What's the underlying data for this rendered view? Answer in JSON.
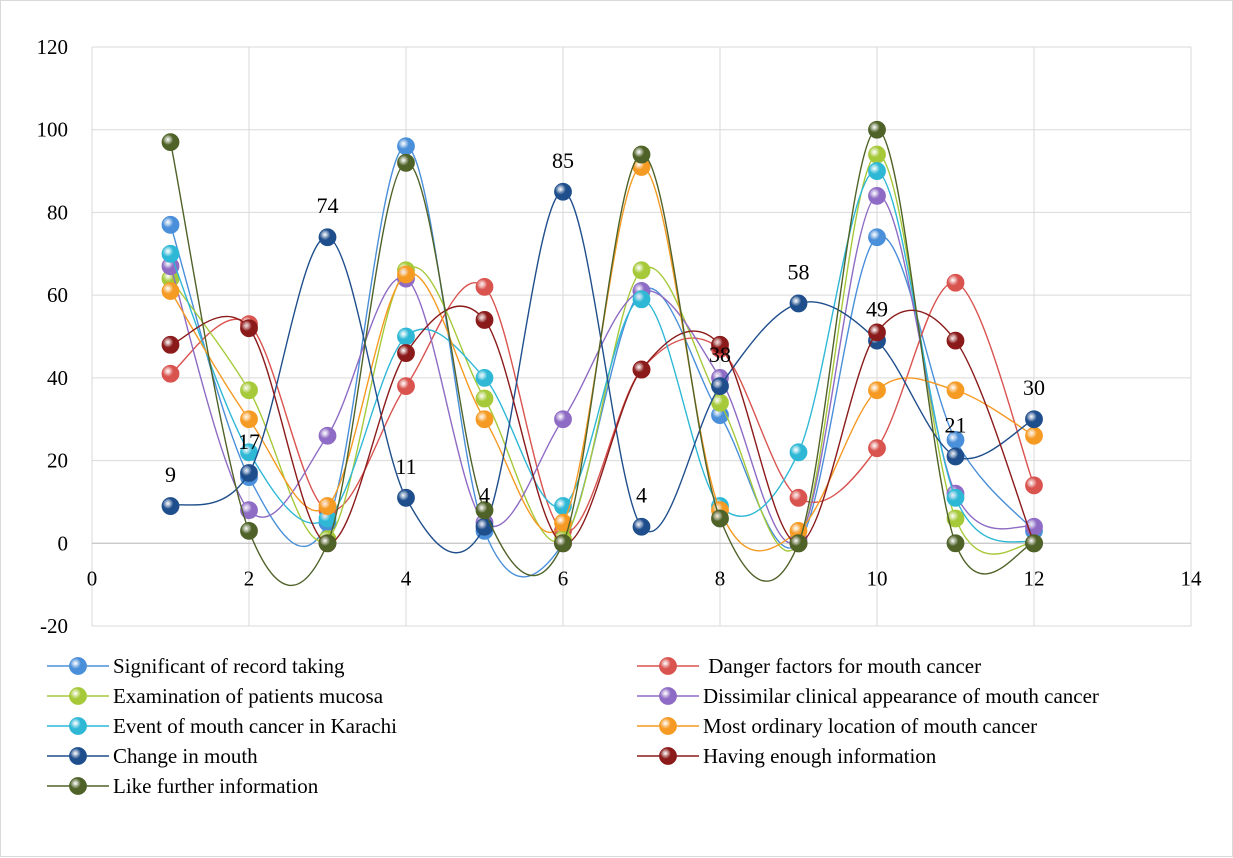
{
  "chart_data": {
    "type": "scatter",
    "title": "",
    "xlabel": "",
    "ylabel": "",
    "xlim": [
      0,
      14
    ],
    "ylim": [
      -20,
      120
    ],
    "x_ticks": [
      "0",
      "2",
      "4",
      "6",
      "8",
      "10",
      "12",
      "14"
    ],
    "y_ticks": [
      "-20",
      "0",
      "20",
      "40",
      "60",
      "80",
      "100",
      "120"
    ],
    "grid": "horizontal and vertical",
    "legend_position": "bottom",
    "smooth_lines": true,
    "x": [
      1,
      2,
      3,
      4,
      5,
      6,
      7,
      8,
      9,
      10,
      11,
      12
    ],
    "series": [
      {
        "name": "Significant of record taking",
        "color": "#4a8fd9",
        "values": [
          77,
          16,
          5,
          96,
          3,
          0,
          61,
          31,
          0,
          74,
          25,
          3
        ]
      },
      {
        "name": " Danger factors for mouth cancer",
        "color": "#d9534f",
        "values": [
          41,
          53,
          8,
          38,
          62,
          3,
          42,
          47,
          11,
          23,
          63,
          14
        ]
      },
      {
        "name": "Examination of patients mucosa",
        "color": "#a6c93a",
        "values": [
          64,
          37,
          1,
          66,
          35,
          1,
          66,
          34,
          0,
          94,
          6,
          0
        ]
      },
      {
        "name": "Dissimilar clinical appearance of mouth cancer",
        "color": "#8e6bc4",
        "values": [
          67,
          8,
          26,
          64,
          5,
          30,
          61,
          40,
          1,
          84,
          12,
          4
        ]
      },
      {
        "name": "Event of mouth cancer in Karachi",
        "color": "#2fb8d6",
        "values": [
          70,
          22,
          6,
          50,
          40,
          9,
          59,
          9,
          22,
          90,
          11,
          0
        ]
      },
      {
        "name": "Most ordinary location of mouth cancer",
        "color": "#f59a23",
        "values": [
          61,
          30,
          9,
          65,
          30,
          5,
          91,
          8,
          3,
          37,
          37,
          26
        ]
      },
      {
        "name": "Change in mouth",
        "color": "#1f4e8c",
        "values": [
          9,
          17,
          74,
          11,
          4,
          85,
          4,
          38,
          58,
          49,
          21,
          30
        ]
      },
      {
        "name": "Having enough information",
        "color": "#8b1a1a",
        "values": [
          48,
          52,
          0,
          46,
          54,
          0,
          42,
          48,
          0,
          51,
          49,
          0
        ]
      },
      {
        "name": "Like further information",
        "color": "#4f6228",
        "values": [
          97,
          3,
          0,
          92,
          8,
          0,
          94,
          6,
          0,
          100,
          0,
          0
        ]
      }
    ],
    "data_labels": [
      {
        "series": "Change in mouth",
        "x": 1,
        "text": "9"
      },
      {
        "series": "Change in mouth",
        "x": 2,
        "text": "17"
      },
      {
        "series": "Change in mouth",
        "x": 3,
        "text": "74"
      },
      {
        "series": "Change in mouth",
        "x": 4,
        "text": "11"
      },
      {
        "series": "Change in mouth",
        "x": 5,
        "text": "4"
      },
      {
        "series": "Change in mouth",
        "x": 6,
        "text": "85"
      },
      {
        "series": "Change in mouth",
        "x": 7,
        "text": "4"
      },
      {
        "series": "Change in mouth",
        "x": 8,
        "text": "38"
      },
      {
        "series": "Change in mouth",
        "x": 9,
        "text": "58"
      },
      {
        "series": "Change in mouth",
        "x": 10,
        "text": "49"
      },
      {
        "series": "Change in mouth",
        "x": 11,
        "text": "21"
      },
      {
        "series": "Change in mouth",
        "x": 12,
        "text": "30"
      }
    ]
  }
}
